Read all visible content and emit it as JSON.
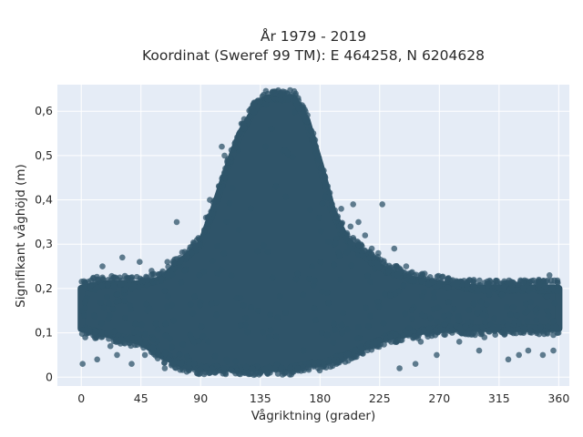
{
  "chart_data": {
    "type": "scatter",
    "title_line1": "År 1979 - 2019",
    "title_line2": "Koordinat (Sweref 99 TM): E 464258, N 6204628",
    "xlabel": "Vågriktning (grader)",
    "ylabel": "Signifikant våghöjd (m)",
    "xlim": [
      -18,
      368
    ],
    "ylim": [
      -0.02,
      0.66
    ],
    "x_ticks": [
      0,
      45,
      90,
      135,
      180,
      225,
      270,
      315,
      360
    ],
    "y_ticks": [
      0,
      0.1,
      0.2,
      0.3,
      0.4,
      0.5,
      0.6
    ],
    "y_tick_labels": [
      "0",
      "0,1",
      "0,2",
      "0,3",
      "0,4",
      "0,5",
      "0,6"
    ],
    "grid": true,
    "colors": {
      "marker": "#2f5469",
      "plot_bg": "#e5ecf6",
      "grid": "#ffffff"
    },
    "envelope": [
      {
        "x": 0,
        "ymin": 0.11,
        "ymax": 0.2
      },
      {
        "x": 15,
        "ymin": 0.1,
        "ymax": 0.21
      },
      {
        "x": 30,
        "ymin": 0.09,
        "ymax": 0.21
      },
      {
        "x": 45,
        "ymin": 0.08,
        "ymax": 0.21
      },
      {
        "x": 60,
        "ymin": 0.05,
        "ymax": 0.22
      },
      {
        "x": 75,
        "ymin": 0.03,
        "ymax": 0.26
      },
      {
        "x": 90,
        "ymin": 0.02,
        "ymax": 0.3
      },
      {
        "x": 100,
        "ymin": 0.02,
        "ymax": 0.38
      },
      {
        "x": 110,
        "ymin": 0.02,
        "ymax": 0.47
      },
      {
        "x": 120,
        "ymin": 0.02,
        "ymax": 0.55
      },
      {
        "x": 130,
        "ymin": 0.02,
        "ymax": 0.6
      },
      {
        "x": 140,
        "ymin": 0.02,
        "ymax": 0.63
      },
      {
        "x": 150,
        "ymin": 0.02,
        "ymax": 0.63
      },
      {
        "x": 160,
        "ymin": 0.02,
        "ymax": 0.63
      },
      {
        "x": 170,
        "ymin": 0.03,
        "ymax": 0.58
      },
      {
        "x": 180,
        "ymin": 0.03,
        "ymax": 0.48
      },
      {
        "x": 190,
        "ymin": 0.04,
        "ymax": 0.37
      },
      {
        "x": 200,
        "ymin": 0.05,
        "ymax": 0.31
      },
      {
        "x": 215,
        "ymin": 0.07,
        "ymax": 0.27
      },
      {
        "x": 230,
        "ymin": 0.09,
        "ymax": 0.24
      },
      {
        "x": 250,
        "ymin": 0.1,
        "ymax": 0.22
      },
      {
        "x": 270,
        "ymin": 0.11,
        "ymax": 0.21
      },
      {
        "x": 300,
        "ymin": 0.11,
        "ymax": 0.2
      },
      {
        "x": 330,
        "ymin": 0.11,
        "ymax": 0.2
      },
      {
        "x": 360,
        "ymin": 0.11,
        "ymax": 0.2
      }
    ],
    "outliers": [
      [
        1,
        0.03
      ],
      [
        3,
        0.09
      ],
      [
        12,
        0.04
      ],
      [
        16,
        0.25
      ],
      [
        22,
        0.07
      ],
      [
        27,
        0.05
      ],
      [
        31,
        0.27
      ],
      [
        38,
        0.03
      ],
      [
        44,
        0.26
      ],
      [
        48,
        0.05
      ],
      [
        53,
        0.24
      ],
      [
        58,
        0.05
      ],
      [
        63,
        0.02
      ],
      [
        65,
        0.26
      ],
      [
        72,
        0.35
      ],
      [
        80,
        0.28
      ],
      [
        85,
        0.03
      ],
      [
        94,
        0.36
      ],
      [
        97,
        0.4
      ],
      [
        100,
        0.38
      ],
      [
        101,
        0.01
      ],
      [
        104,
        0.43
      ],
      [
        106,
        0.52
      ],
      [
        108,
        0.5
      ],
      [
        140,
        0.01
      ],
      [
        163,
        0.02
      ],
      [
        175,
        0.55
      ],
      [
        177,
        0.52
      ],
      [
        184,
        0.45
      ],
      [
        188,
        0.38
      ],
      [
        193,
        0.36
      ],
      [
        196,
        0.38
      ],
      [
        203,
        0.34
      ],
      [
        205,
        0.39
      ],
      [
        209,
        0.35
      ],
      [
        214,
        0.32
      ],
      [
        219,
        0.29
      ],
      [
        224,
        0.28
      ],
      [
        227,
        0.39
      ],
      [
        236,
        0.29
      ],
      [
        240,
        0.02
      ],
      [
        245,
        0.25
      ],
      [
        252,
        0.03
      ],
      [
        256,
        0.08
      ],
      [
        262,
        0.21
      ],
      [
        268,
        0.05
      ],
      [
        276,
        0.22
      ],
      [
        285,
        0.08
      ],
      [
        291,
        0.21
      ],
      [
        300,
        0.06
      ],
      [
        304,
        0.09
      ],
      [
        322,
        0.04
      ],
      [
        330,
        0.05
      ],
      [
        337,
        0.06
      ],
      [
        345,
        0.22
      ],
      [
        348,
        0.05
      ],
      [
        353,
        0.23
      ],
      [
        356,
        0.06
      ]
    ]
  }
}
